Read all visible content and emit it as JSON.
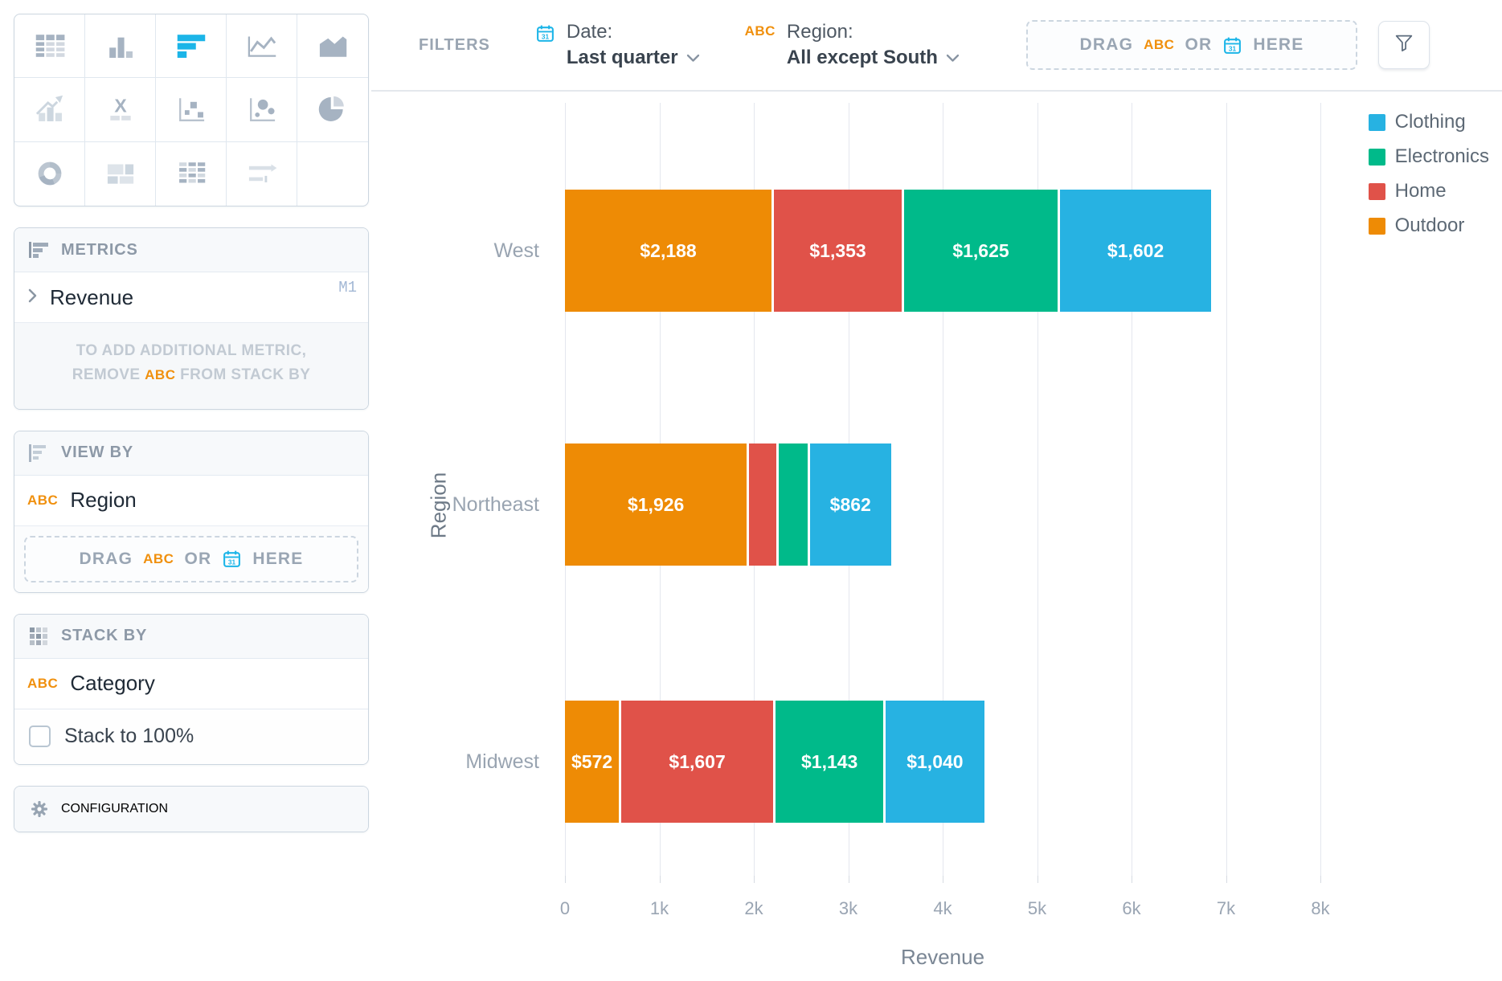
{
  "colors": {
    "accent": "#1cb5e8",
    "abc_orange": "#f0900e",
    "clothing": "#27B2E2",
    "electronics": "#00BA8A",
    "home": "#E05249",
    "outdoor": "#EE8B05"
  },
  "sidebar": {
    "chart_types": [
      {
        "name": "table",
        "tone": "dark",
        "selected": false
      },
      {
        "name": "column-chart",
        "tone": "dark",
        "selected": false
      },
      {
        "name": "horizontal-bar-chart",
        "tone": "selected",
        "selected": true
      },
      {
        "name": "line-chart",
        "tone": "dark",
        "selected": false
      },
      {
        "name": "area-chart",
        "tone": "dark",
        "selected": false
      },
      {
        "name": "trend-combo-chart",
        "tone": "light",
        "selected": false
      },
      {
        "name": "x-axis-label",
        "tone": "dark",
        "selected": false
      },
      {
        "name": "scatter-plot",
        "tone": "dark",
        "selected": false
      },
      {
        "name": "bubble-chart",
        "tone": "dark",
        "selected": false
      },
      {
        "name": "pie-chart",
        "tone": "dark",
        "selected": false
      },
      {
        "name": "donut-chart",
        "tone": "dark",
        "selected": false
      },
      {
        "name": "dashboard-layout",
        "tone": "light",
        "selected": false
      },
      {
        "name": "pivot-table",
        "tone": "dark",
        "selected": false
      },
      {
        "name": "bullet-chart",
        "tone": "light",
        "selected": false
      },
      {
        "name": "empty",
        "tone": "light",
        "selected": false
      }
    ],
    "metrics": {
      "title": "METRICS",
      "field": "Revenue",
      "badge": "M1",
      "hint_line1": "TO ADD ADDITIONAL METRIC,",
      "hint_pre": "REMOVE",
      "hint_abc": "ABC",
      "hint_post": "FROM STACK BY"
    },
    "view_by": {
      "title": "VIEW BY",
      "abc": "ABC",
      "field": "Region",
      "drop": {
        "drag": "DRAG",
        "abc": "ABC",
        "or": "OR",
        "here": "HERE"
      }
    },
    "stack_by": {
      "title": "STACK BY",
      "abc": "ABC",
      "field": "Category",
      "checkbox_label": "Stack to 100%",
      "checkbox_checked": false
    },
    "configuration": {
      "title": "CONFIGURATION"
    }
  },
  "filterbar": {
    "title": "FILTERS",
    "date": {
      "label": "Date:",
      "value": "Last quarter"
    },
    "region": {
      "abc": "ABC",
      "label": "Region:",
      "value": "All except South"
    },
    "drop": {
      "drag": "DRAG",
      "abc": "ABC",
      "or": "OR",
      "here": "HERE"
    }
  },
  "chart_data": {
    "type": "bar",
    "orientation": "horizontal",
    "stacked": true,
    "title": "",
    "xlabel": "Revenue",
    "ylabel": "Region",
    "categories": [
      "West",
      "Northeast",
      "Midwest"
    ],
    "series": [
      {
        "name": "Outdoor",
        "color": "#EE8B05",
        "values": [
          2188,
          1926,
          572
        ],
        "labels": [
          "$2,188",
          "$1,926",
          "$572"
        ]
      },
      {
        "name": "Home",
        "color": "#E05249",
        "values": [
          1353,
          290,
          1607
        ],
        "labels": [
          "$1,353",
          "",
          "$1,607"
        ]
      },
      {
        "name": "Electronics",
        "color": "#00BA8A",
        "values": [
          1625,
          300,
          1143
        ],
        "labels": [
          "$1,625",
          "",
          "$1,143"
        ]
      },
      {
        "name": "Clothing",
        "color": "#27B2E2",
        "values": [
          1602,
          862,
          1040
        ],
        "labels": [
          "$1,602",
          "$862",
          "$1,040"
        ]
      }
    ],
    "legend": [
      {
        "label": "Clothing",
        "color": "#27B2E2"
      },
      {
        "label": "Electronics",
        "color": "#00BA8A"
      },
      {
        "label": "Home",
        "color": "#E05249"
      },
      {
        "label": "Outdoor",
        "color": "#EE8B05"
      }
    ],
    "x_ticks": [
      "0",
      "1k",
      "2k",
      "3k",
      "4k",
      "5k",
      "6k",
      "7k",
      "8k"
    ],
    "xlim": [
      0,
      8000
    ],
    "grid": true,
    "legend_position": "top-right"
  }
}
